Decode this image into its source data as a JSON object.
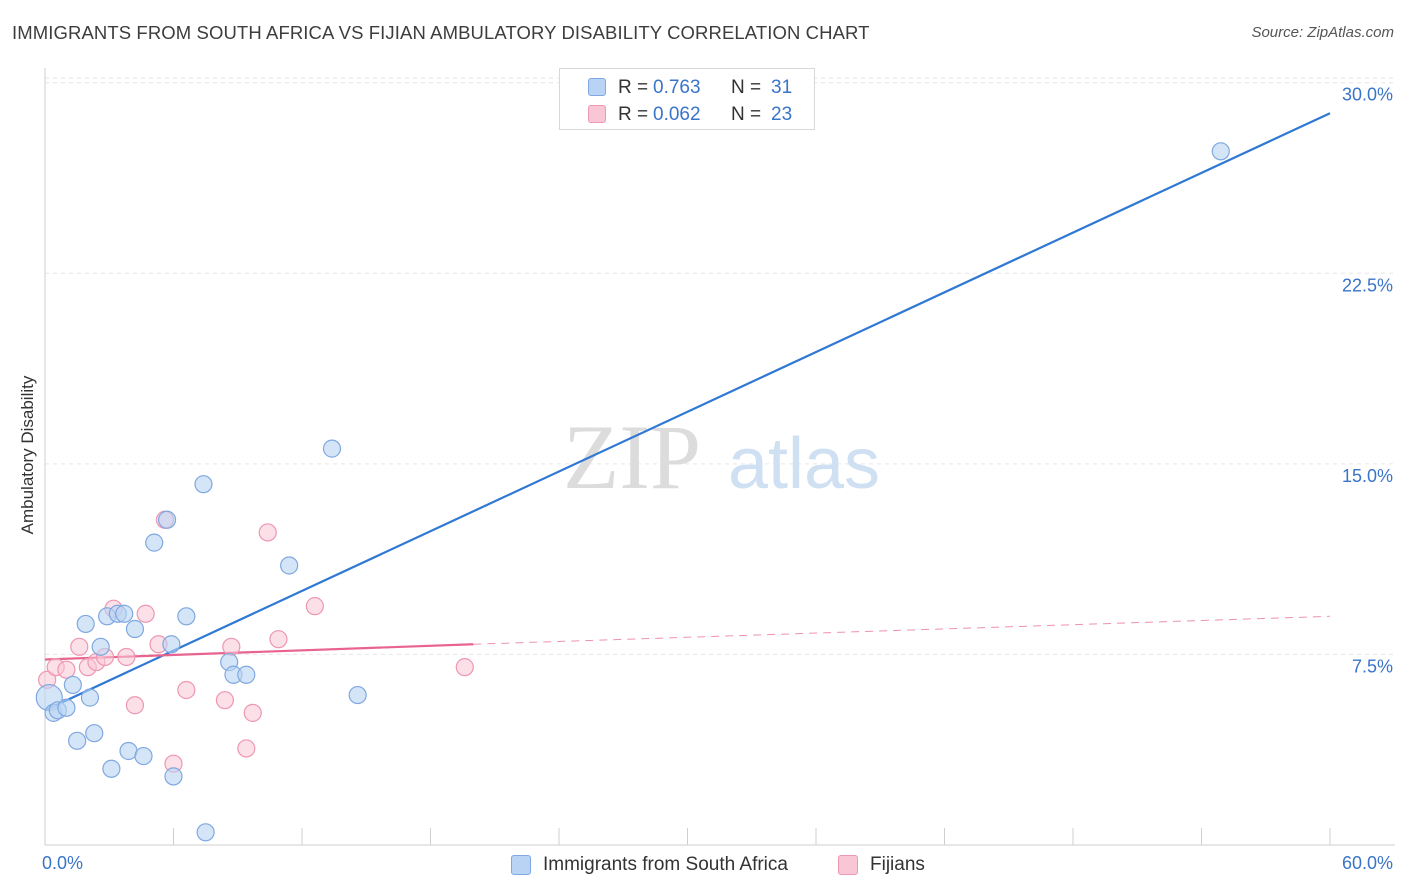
{
  "header": {
    "title": "IMMIGRANTS FROM SOUTH AFRICA VS FIJIAN AMBULATORY DISABILITY CORRELATION CHART",
    "source": "Source: ZipAtlas.com"
  },
  "legend_top": {
    "rows": [
      {
        "r_label": "R =",
        "r_value": "0.763",
        "n_label": "N =",
        "n_value": "31"
      },
      {
        "r_label": "R =",
        "r_value": "0.062",
        "n_label": "N =",
        "n_value": "23"
      }
    ]
  },
  "legend_bottom": {
    "series1": "Immigrants from South Africa",
    "series2": "Fijians"
  },
  "colors": {
    "blue_fill": "#b9d3f4",
    "blue_edge": "#7fa8e0",
    "blue_line": "#2f78d4",
    "pink_fill": "#f9c6d5",
    "pink_edge": "#ee96b2",
    "pink_line": "#e8648e",
    "axis_label": "#3a74c9",
    "grid": "#e6e6e6"
  },
  "watermark": {
    "zip": "ZIP",
    "atlas": "atlas"
  },
  "chart_data": {
    "type": "scatter",
    "title": "IMMIGRANTS FROM SOUTH AFRICA VS FIJIAN AMBULATORY DISABILITY CORRELATION CHART",
    "xlabel": "",
    "ylabel": "Ambulatory Disability",
    "xlim": [
      0,
      60
    ],
    "ylim": [
      0,
      30.5
    ],
    "x_tick_labels": [
      {
        "value": 0,
        "label": "0.0%"
      },
      {
        "value": 60,
        "label": "60.0%"
      }
    ],
    "y_tick_labels": [
      {
        "value": 7.5,
        "label": "7.5%"
      },
      {
        "value": 15.0,
        "label": "15.0%"
      },
      {
        "value": 22.5,
        "label": "22.5%"
      },
      {
        "value": 30.0,
        "label": "30.0%"
      }
    ],
    "series": [
      {
        "name": "Immigrants from South Africa",
        "color": "#b9d3f4",
        "R": 0.763,
        "N": 31,
        "points": [
          [
            0.2,
            5.8
          ],
          [
            0.4,
            5.2
          ],
          [
            0.6,
            5.3
          ],
          [
            1.0,
            5.4
          ],
          [
            1.3,
            6.3
          ],
          [
            1.5,
            4.1
          ],
          [
            1.9,
            8.7
          ],
          [
            2.1,
            5.8
          ],
          [
            2.3,
            4.4
          ],
          [
            2.6,
            7.8
          ],
          [
            2.9,
            9.0
          ],
          [
            3.1,
            3.0
          ],
          [
            3.4,
            9.1
          ],
          [
            3.7,
            9.1
          ],
          [
            3.9,
            3.7
          ],
          [
            4.2,
            8.5
          ],
          [
            4.6,
            3.5
          ],
          [
            5.1,
            11.9
          ],
          [
            5.7,
            12.8
          ],
          [
            5.9,
            7.9
          ],
          [
            6.0,
            2.7
          ],
          [
            6.6,
            9.0
          ],
          [
            7.4,
            14.2
          ],
          [
            7.5,
            0.5
          ],
          [
            8.6,
            7.2
          ],
          [
            8.8,
            6.7
          ],
          [
            9.4,
            6.7
          ],
          [
            11.4,
            11.0
          ],
          [
            13.4,
            15.6
          ],
          [
            14.6,
            5.9
          ],
          [
            54.9,
            27.3
          ]
        ],
        "trend": {
          "x": [
            0,
            60
          ],
          "y": [
            5.3,
            28.8
          ]
        }
      },
      {
        "name": "Fijians",
        "color": "#f9c6d5",
        "R": 0.062,
        "N": 23,
        "points": [
          [
            0.1,
            6.5
          ],
          [
            0.5,
            7.0
          ],
          [
            1.0,
            6.9
          ],
          [
            1.6,
            7.8
          ],
          [
            2.0,
            7.0
          ],
          [
            2.4,
            7.2
          ],
          [
            2.8,
            7.4
          ],
          [
            3.2,
            9.3
          ],
          [
            3.8,
            7.4
          ],
          [
            4.2,
            5.5
          ],
          [
            4.7,
            9.1
          ],
          [
            5.3,
            7.9
          ],
          [
            5.6,
            12.8
          ],
          [
            6.0,
            3.2
          ],
          [
            6.6,
            6.1
          ],
          [
            8.4,
            5.7
          ],
          [
            8.7,
            7.8
          ],
          [
            9.4,
            3.8
          ],
          [
            9.7,
            5.2
          ],
          [
            10.4,
            12.3
          ],
          [
            10.9,
            8.1
          ],
          [
            12.6,
            9.4
          ],
          [
            19.6,
            7.0
          ]
        ],
        "trend": {
          "x": [
            0,
            20
          ],
          "y": [
            7.3,
            7.9
          ]
        },
        "trend_dashed": {
          "x": [
            20,
            60
          ],
          "y": [
            7.9,
            9.0
          ]
        }
      }
    ]
  }
}
